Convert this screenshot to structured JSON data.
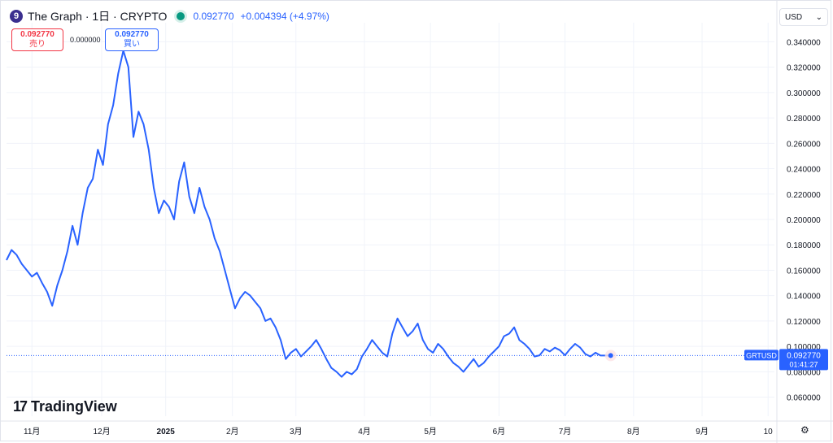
{
  "header": {
    "coin_icon": "9",
    "title": "The Graph · 1日 · CRYPTO",
    "last_price": "0.092770",
    "change": "+0.004394 (+4.97%)"
  },
  "trade": {
    "sell_price": "0.092770",
    "sell_label": "売り",
    "spread": "0.000000",
    "buy_price": "0.092770",
    "buy_label": "買い"
  },
  "currency_select": {
    "value": "USD",
    "icon": "chevron-down-icon"
  },
  "brand": {
    "mark": "17",
    "name": "TradingView"
  },
  "price_tag": {
    "symbol": "GRTUSD",
    "price": "0.092770",
    "countdown": "01:41:27"
  },
  "colors": {
    "line": "#2962ff",
    "up": "#089981",
    "down": "#f23645",
    "grid": "#f0f3fa",
    "axis_text": "#131722"
  },
  "chart_data": {
    "type": "line",
    "symbol": "GRTUSD",
    "title": "The Graph · 1日 · CRYPTO",
    "ylim": [
      0.045,
      0.355
    ],
    "y_ticks": [
      0.06,
      0.08,
      0.1,
      0.12,
      0.14,
      0.16,
      0.18,
      0.2,
      0.22,
      0.24,
      0.26,
      0.28,
      0.3,
      0.32,
      0.34
    ],
    "y_tick_labels": [
      "0.060000",
      "0.080000",
      "0.100000",
      "0.120000",
      "0.140000",
      "0.160000",
      "0.180000",
      "0.200000",
      "0.220000",
      "0.240000",
      "0.260000",
      "0.280000",
      "0.300000",
      "0.320000",
      "0.340000"
    ],
    "x_ticks": [
      {
        "label": "11月",
        "t": 1.0
      },
      {
        "label": "12月",
        "t": 3.75
      },
      {
        "label": "2025",
        "t": 6.27
      },
      {
        "label": "2月",
        "t": 8.9
      },
      {
        "label": "3月",
        "t": 11.4
      },
      {
        "label": "4月",
        "t": 14.1
      },
      {
        "label": "5月",
        "t": 16.7
      },
      {
        "label": "6月",
        "t": 19.4
      },
      {
        "label": "7月",
        "t": 22.0
      },
      {
        "label": "8月",
        "t": 24.7
      },
      {
        "label": "9月",
        "t": 27.4
      },
      {
        "label": "10",
        "t": 30.0
      }
    ],
    "grid": true,
    "x_unit": "half-month",
    "x": [
      0,
      0.2,
      0.4,
      0.6,
      0.8,
      1.0,
      1.2,
      1.4,
      1.6,
      1.8,
      2.0,
      2.2,
      2.4,
      2.6,
      2.8,
      3.0,
      3.2,
      3.4,
      3.6,
      3.8,
      4.0,
      4.2,
      4.4,
      4.6,
      4.8,
      5.0,
      5.2,
      5.4,
      5.6,
      5.8,
      6.0,
      6.2,
      6.4,
      6.6,
      6.8,
      7.0,
      7.2,
      7.4,
      7.6,
      7.8,
      8.0,
      8.2,
      8.4,
      8.6,
      8.8,
      9.0,
      9.2,
      9.4,
      9.6,
      9.8,
      10.0,
      10.2,
      10.4,
      10.6,
      10.8,
      11.0,
      11.2,
      11.4,
      11.6,
      11.8,
      12.0,
      12.2,
      12.4,
      12.6,
      12.8,
      13.0,
      13.2,
      13.4,
      13.6,
      13.8,
      14.0,
      14.2,
      14.4,
      14.6,
      14.8,
      15.0,
      15.2,
      15.4,
      15.6,
      15.8,
      16.0,
      16.2,
      16.4,
      16.6,
      16.8,
      17.0,
      17.2,
      17.4,
      17.6,
      17.8,
      18.0,
      18.2,
      18.4,
      18.6,
      18.8,
      19.0,
      19.2,
      19.4,
      19.6,
      19.8,
      20.0,
      20.2,
      20.4,
      20.6,
      20.8,
      21.0,
      21.2,
      21.4,
      21.6,
      21.8,
      22.0,
      22.2,
      22.4,
      22.6,
      22.8,
      23.0,
      23.2,
      23.4,
      23.6,
      23.8,
      24.0,
      24.2,
      24.4,
      24.6,
      24.8,
      25.0,
      25.2,
      25.4,
      25.6,
      25.8,
      26.0,
      26.2,
      26.4
    ],
    "series": [
      {
        "values": [
          0.168,
          0.176,
          0.172,
          0.165,
          0.16,
          0.155,
          0.158,
          0.15,
          0.143,
          0.132,
          0.148,
          0.16,
          0.175,
          0.195,
          0.18,
          0.205,
          0.225,
          0.232,
          0.255,
          0.243,
          0.275,
          0.29,
          0.315,
          0.333,
          0.32,
          0.265,
          0.285,
          0.275,
          0.255,
          0.225,
          0.205,
          0.215,
          0.21,
          0.2,
          0.23,
          0.245,
          0.218,
          0.205,
          0.225,
          0.21,
          0.2,
          0.185,
          0.175,
          0.16,
          0.145,
          0.13,
          0.138,
          0.143,
          0.14,
          0.135,
          0.13,
          0.12,
          0.122,
          0.115,
          0.105,
          0.09,
          0.095,
          0.098,
          0.092,
          0.096,
          0.1,
          0.105,
          0.098,
          0.09,
          0.083,
          0.08,
          0.076,
          0.08,
          0.078,
          0.082,
          0.092,
          0.098,
          0.105,
          0.1,
          0.095,
          0.092,
          0.11,
          0.122,
          0.115,
          0.108,
          0.112,
          0.118,
          0.105,
          0.098,
          0.095,
          0.102,
          0.098,
          0.092,
          0.087,
          0.084,
          0.08,
          0.085,
          0.09,
          0.084,
          0.087,
          0.092,
          0.096,
          0.1,
          0.108,
          0.11,
          0.115,
          0.105,
          0.102,
          0.098,
          0.092,
          0.093,
          0.098,
          0.096,
          0.099,
          0.097,
          0.093,
          0.098,
          0.102,
          0.099,
          0.094,
          0.092,
          0.095,
          0.0928,
          0.0928,
          0.0928,
          0.0928,
          0.0928,
          0.0928,
          0.0928,
          0.0928,
          0.0928,
          0.0928,
          0.0928,
          0.0928,
          0.0928,
          0.0928,
          0.0928,
          0.0928
        ]
      }
    ],
    "last_value": 0.09277
  }
}
